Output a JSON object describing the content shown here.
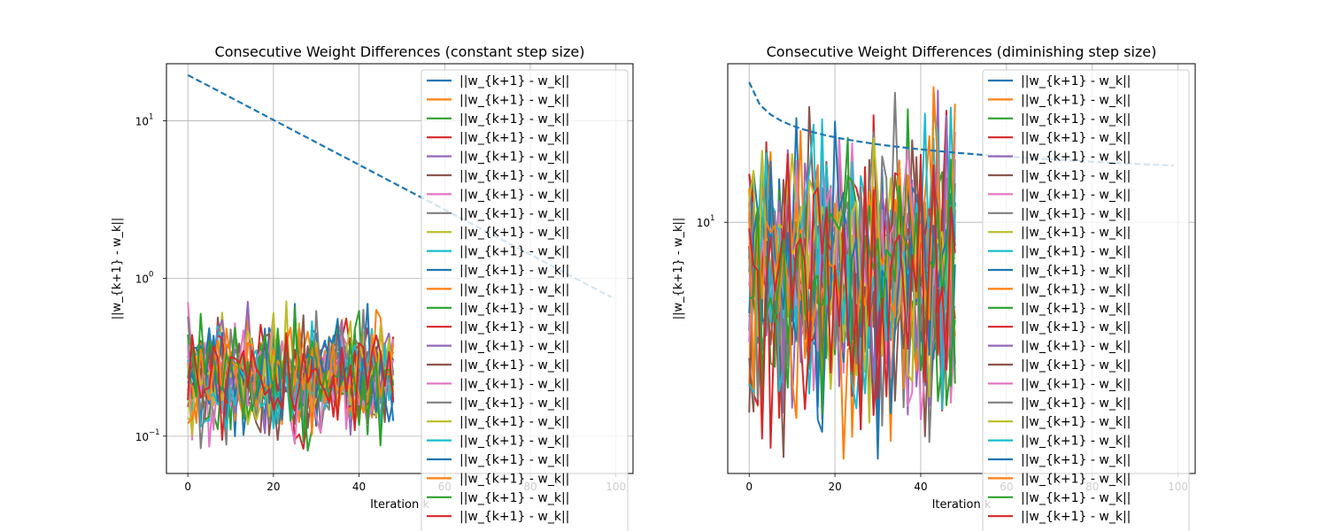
{
  "chart_data": [
    {
      "type": "line",
      "title": "Consecutive Weight Differences (constant step size)",
      "xlabel": "Iteration k",
      "ylabel": "||w_{k+1} - w_k||",
      "yscale": "log",
      "xlim": [
        -5,
        104
      ],
      "ylim": [
        0.058,
        23
      ],
      "xticks": [
        0,
        20,
        40,
        60,
        80,
        100
      ],
      "yticks": [
        {
          "value": 0.1,
          "label": "10",
          "exp": "−1"
        },
        {
          "value": 1,
          "label": "10",
          "exp": "0"
        },
        {
          "value": 10,
          "label": "10",
          "exp": "1"
        }
      ],
      "grid": true,
      "legend_position": "top-right",
      "legend_entry": "||w_{k+1} - w_k||",
      "legend_count": 24,
      "num_series": 24,
      "series_x_range": [
        0,
        48
      ],
      "series_value_range": [
        0.08,
        0.72
      ],
      "reference_line": {
        "x_start": 0,
        "x_end": 99,
        "y_start": 19.5,
        "y_end": 0.76,
        "style": "dashed",
        "color": "#1f77b4"
      }
    },
    {
      "type": "line",
      "title": "Consecutive Weight Differences (diminishing step size)",
      "xlabel": "Iteration k",
      "ylabel": "||w_{k+1} - w_k||",
      "yscale": "log",
      "xlim": [
        -5,
        104
      ],
      "ylim": [
        1.44,
        34
      ],
      "xticks": [
        0,
        20,
        40,
        60,
        80,
        100
      ],
      "yticks": [
        {
          "value": 10,
          "label": "10",
          "exp": "1"
        }
      ],
      "grid": true,
      "legend_position": "top-right",
      "legend_entry": "||w_{k+1} - w_k||",
      "legend_count": 24,
      "num_series": 24,
      "series_x_range": [
        0,
        48
      ],
      "series_value_range": [
        1.6,
        30
      ],
      "reference_line": {
        "x_start": 0,
        "x_end": 99,
        "y_start": 29.5,
        "y_end": 15.5,
        "style": "dashed",
        "color": "#1f77b4"
      }
    }
  ],
  "colors": [
    "#1f77b4",
    "#ff7f0e",
    "#2ca02c",
    "#d62728",
    "#9467bd",
    "#8c564b",
    "#e377c2",
    "#7f7f7f",
    "#bcbd22",
    "#17becf"
  ]
}
